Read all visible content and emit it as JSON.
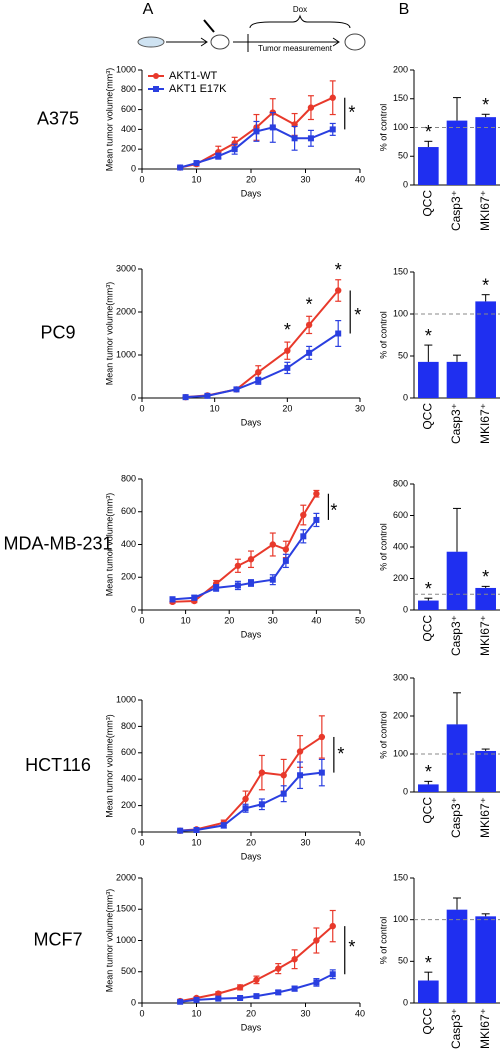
{
  "header": {
    "panel_a": "A",
    "panel_b": "B",
    "dox": "Dox",
    "measurement": "Tumor measurement"
  },
  "chart_data": [
    {
      "type": "line",
      "title": "A375",
      "ylabel": "Mean tumor volume(mm³)",
      "xlabel": "Days",
      "legend": "upper left",
      "x": [
        7,
        10,
        14,
        17,
        21,
        24,
        28,
        31,
        35
      ],
      "xlim": [
        0,
        40
      ],
      "xticks": [
        0,
        10,
        20,
        30,
        40
      ],
      "ylim": [
        0,
        1000
      ],
      "yticks": [
        0,
        200,
        400,
        600,
        800,
        1000
      ],
      "series": [
        {
          "name": "AKT1-WT",
          "color": "#e8392b",
          "marker": "circle",
          "values": [
            15,
            50,
            170,
            260,
            420,
            570,
            450,
            620,
            720
          ],
          "errors": [
            10,
            20,
            60,
            60,
            130,
            140,
            110,
            120,
            170
          ]
        },
        {
          "name": "AKT1 E17K",
          "color": "#2a3fe0",
          "marker": "square",
          "values": [
            15,
            60,
            130,
            200,
            380,
            420,
            310,
            310,
            400
          ],
          "errors": [
            10,
            20,
            30,
            50,
            100,
            150,
            120,
            80,
            60
          ]
        }
      ],
      "annotations": [
        {
          "text": "*",
          "x": 38.5,
          "y": 560
        }
      ]
    },
    {
      "type": "line",
      "title": "PC9",
      "ylabel": "Mean tumor volume(mm³)",
      "xlabel": "Days",
      "x": [
        6,
        9,
        13,
        16,
        20,
        23,
        27
      ],
      "xlim": [
        0,
        30
      ],
      "xticks": [
        0,
        10,
        20,
        30
      ],
      "ylim": [
        0,
        3000
      ],
      "yticks": [
        0,
        1000,
        2000,
        3000
      ],
      "series": [
        {
          "color": "#e8392b",
          "marker": "circle",
          "values": [
            20,
            60,
            200,
            600,
            1100,
            1700,
            2500
          ],
          "errors": [
            10,
            20,
            30,
            150,
            200,
            200,
            250
          ]
        },
        {
          "color": "#2a3fe0",
          "marker": "square",
          "values": [
            20,
            50,
            200,
            400,
            700,
            1050,
            1500
          ],
          "errors": [
            10,
            20,
            30,
            80,
            130,
            150,
            300
          ]
        }
      ],
      "annotations": [
        {
          "text": "*",
          "x": 20,
          "y": 1550
        },
        {
          "text": "*",
          "x": 23,
          "y": 2150
        },
        {
          "text": "*",
          "x": 27,
          "y": 2950
        },
        {
          "text": "*",
          "x": 29.7,
          "y": 1900
        }
      ]
    },
    {
      "type": "line",
      "title": "MDA-MB-231",
      "ylabel": "Mean tumor volume(mm³)",
      "xlabel": "Days",
      "x": [
        7,
        12,
        17,
        22,
        25,
        30,
        33,
        37,
        40
      ],
      "xlim": [
        0,
        50
      ],
      "xticks": [
        0,
        10,
        20,
        30,
        40,
        50
      ],
      "ylim": [
        0,
        800
      ],
      "yticks": [
        0,
        200,
        400,
        600,
        800
      ],
      "series": [
        {
          "color": "#e8392b",
          "marker": "circle",
          "values": [
            50,
            55,
            160,
            270,
            310,
            400,
            370,
            580,
            710
          ],
          "errors": [
            10,
            10,
            20,
            40,
            50,
            70,
            50,
            60,
            20
          ]
        },
        {
          "color": "#2a3fe0",
          "marker": "square",
          "values": [
            65,
            75,
            135,
            150,
            165,
            185,
            300,
            450,
            550
          ],
          "errors": [
            15,
            15,
            20,
            25,
            20,
            30,
            40,
            40,
            40
          ]
        }
      ],
      "annotations": [
        {
          "text": "*",
          "x": 44,
          "y": 600
        }
      ]
    },
    {
      "type": "line",
      "title": "HCT116",
      "ylabel": "Mean tumor volume(mm³)",
      "xlabel": "Days",
      "x": [
        7,
        10,
        15,
        19,
        22,
        26,
        29,
        33
      ],
      "xlim": [
        0,
        40
      ],
      "xticks": [
        0,
        10,
        20,
        30,
        40
      ],
      "ylim": [
        0,
        1000
      ],
      "yticks": [
        0,
        200,
        400,
        600,
        800,
        1000
      ],
      "series": [
        {
          "color": "#e8392b",
          "marker": "circle",
          "values": [
            10,
            20,
            70,
            250,
            450,
            430,
            610,
            720
          ],
          "errors": [
            5,
            10,
            20,
            60,
            130,
            120,
            120,
            160
          ]
        },
        {
          "color": "#2a3fe0",
          "marker": "square",
          "values": [
            10,
            15,
            50,
            180,
            210,
            290,
            430,
            450
          ],
          "errors": [
            5,
            10,
            20,
            30,
            40,
            60,
            100,
            100
          ]
        }
      ],
      "annotations": [
        {
          "text": "*",
          "x": 36.5,
          "y": 580
        }
      ]
    },
    {
      "type": "line",
      "title": "MCF7",
      "ylabel": "Mean tumor volume(mm³)",
      "xlabel": "Days",
      "x": [
        7,
        10,
        14,
        18,
        21,
        25,
        28,
        32,
        35
      ],
      "xlim": [
        0,
        40
      ],
      "xticks": [
        0,
        10,
        20,
        30,
        40
      ],
      "ylim": [
        0,
        2000
      ],
      "yticks": [
        0,
        500,
        1000,
        1500,
        2000
      ],
      "series": [
        {
          "color": "#e8392b",
          "marker": "circle",
          "values": [
            30,
            80,
            150,
            250,
            370,
            550,
            700,
            1000,
            1230
          ],
          "errors": [
            10,
            20,
            30,
            40,
            60,
            80,
            150,
            200,
            250
          ]
        },
        {
          "color": "#2a3fe0",
          "marker": "square",
          "values": [
            20,
            50,
            70,
            80,
            110,
            170,
            230,
            330,
            460
          ],
          "errors": [
            10,
            15,
            20,
            20,
            20,
            30,
            40,
            60,
            70
          ]
        }
      ],
      "annotations": [
        {
          "text": "*",
          "x": 38.5,
          "y": 880
        }
      ]
    },
    {
      "type": "bar",
      "ylabel": "% of control",
      "categories": [
        "QCC",
        "Casp3⁺",
        "MKI67⁺"
      ],
      "color": "#1f2ff0",
      "values": [
        66,
        112,
        118
      ],
      "errors": [
        10,
        40,
        5
      ],
      "ylim": [
        0,
        200
      ],
      "yticks": [
        0,
        50,
        100,
        150,
        200
      ],
      "reference_line": 100,
      "annotations": [
        {
          "text": "*",
          "category": "QCC"
        },
        {
          "text": "*",
          "category": "MKI67⁺"
        }
      ]
    },
    {
      "type": "bar",
      "ylabel": "% of control",
      "categories": [
        "QCC",
        "Casp3⁺",
        "MKI67⁺"
      ],
      "color": "#1f2ff0",
      "values": [
        43,
        43,
        115
      ],
      "errors": [
        20,
        8,
        8
      ],
      "ylim": [
        0,
        150
      ],
      "yticks": [
        0,
        50,
        100,
        150
      ],
      "reference_line": 100,
      "annotations": [
        {
          "text": "*",
          "category": "QCC"
        },
        {
          "text": "*",
          "category": "MKI67⁺"
        }
      ]
    },
    {
      "type": "bar",
      "ylabel": "% of control",
      "categories": [
        "QCC",
        "Casp3⁺",
        "MKI67⁺"
      ],
      "color": "#1f2ff0",
      "values": [
        60,
        370,
        140
      ],
      "errors": [
        15,
        275,
        10
      ],
      "ylim": [
        0,
        800
      ],
      "yticks": [
        0,
        200,
        400,
        600,
        800
      ],
      "reference_line": 100,
      "annotations": [
        {
          "text": "*",
          "category": "QCC"
        },
        {
          "text": "*",
          "category": "MKI67⁺"
        }
      ]
    },
    {
      "type": "bar",
      "ylabel": "% of control",
      "categories": [
        "QCC",
        "Casp3⁺",
        "MKI67⁺"
      ],
      "color": "#1f2ff0",
      "values": [
        20,
        178,
        108
      ],
      "errors": [
        8,
        83,
        5
      ],
      "ylim": [
        0,
        300
      ],
      "yticks": [
        0,
        100,
        200,
        300
      ],
      "reference_line": 100,
      "annotations": [
        {
          "text": "*",
          "category": "QCC"
        }
      ]
    },
    {
      "type": "bar",
      "ylabel": "% of control",
      "categories": [
        "QCC",
        "Casp3⁺",
        "MKI67⁺"
      ],
      "color": "#1f2ff0",
      "values": [
        27,
        112,
        104
      ],
      "errors": [
        10,
        14,
        3
      ],
      "ylim": [
        0,
        150
      ],
      "yticks": [
        0,
        50,
        100,
        150
      ],
      "reference_line": 100,
      "annotations": [
        {
          "text": "*",
          "category": "QCC"
        }
      ]
    }
  ]
}
